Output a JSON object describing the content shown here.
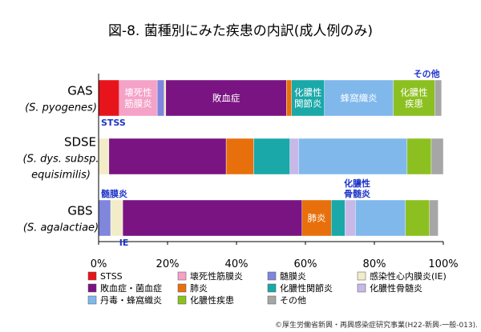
{
  "chart_data": {
    "type": "bar",
    "orientation": "horizontal",
    "stacked": true,
    "percent": true,
    "title": "図-8. 菌種別にみた疾患の内訳(成人例のみ)",
    "xlim": [
      0,
      100
    ],
    "x_ticks": [
      "0%",
      "20%",
      "40%",
      "60%",
      "80%",
      "100%"
    ],
    "grid": false,
    "legend_position": "bottom",
    "categories": [
      {
        "name": "GAS",
        "subname": [
          "(S. pyogenes)"
        ]
      },
      {
        "name": "SDSE",
        "subname": [
          "(S. dys. subsp.",
          "equisimilis)"
        ]
      },
      {
        "name": "GBS",
        "subname": [
          "(S. agalactiae)"
        ]
      }
    ],
    "series": [
      {
        "name": "STSS",
        "color": "#e8141c",
        "values": [
          6,
          0,
          0
        ],
        "segment_labels": [
          "",
          "",
          ""
        ]
      },
      {
        "name": "壊死性筋膜炎",
        "color": "#f4a2c8",
        "values": [
          11,
          0,
          0
        ],
        "segment_labels": [
          "壊死性\n筋膜炎",
          "",
          ""
        ]
      },
      {
        "name": "髄膜炎",
        "color": "#7f86dc",
        "values": [
          2,
          0,
          3.5
        ],
        "segment_labels": [
          "",
          "",
          ""
        ]
      },
      {
        "name": "感染性心内膜炎(IE)",
        "color": "#f2ecc8",
        "values": [
          0.5,
          3,
          3.5
        ],
        "segment_labels": [
          "",
          "",
          ""
        ]
      },
      {
        "name": "敗血症・菌血症",
        "color": "#7a1482",
        "values": [
          35,
          34,
          52
        ],
        "segment_labels": [
          "敗血症",
          "",
          ""
        ]
      },
      {
        "name": "肺炎",
        "color": "#e8700c",
        "values": [
          1.5,
          8,
          8.5
        ],
        "segment_labels": [
          "",
          "",
          "肺炎"
        ]
      },
      {
        "name": "化膿性関節炎",
        "color": "#1aa8a8",
        "values": [
          9.5,
          10.5,
          4
        ],
        "segment_labels": [
          "化膿性\n関節炎",
          "",
          ""
        ]
      },
      {
        "name": "化膿性骨髄炎",
        "color": "#c8b8e8",
        "values": [
          0,
          2.5,
          3
        ],
        "segment_labels": [
          "",
          "",
          ""
        ]
      },
      {
        "name": "丹毒・蜂窩織炎",
        "color": "#80b8ec",
        "values": [
          20,
          31.5,
          14.5
        ],
        "segment_labels": [
          "蜂窩織炎",
          "",
          ""
        ]
      },
      {
        "name": "化膿性疾患",
        "color": "#8cc020",
        "values": [
          12,
          7,
          7
        ],
        "segment_labels": [
          "化膿性\n疾患",
          "",
          ""
        ]
      },
      {
        "name": "その他",
        "color": "#a6a6a6",
        "values": [
          2,
          3.5,
          2.5
        ],
        "segment_labels": [
          "",
          "",
          ""
        ]
      }
    ],
    "annotations": [
      {
        "text": "その他",
        "category": 0,
        "at": 99,
        "position": "above"
      },
      {
        "text": "STSS",
        "category": 0,
        "at": 0,
        "position": "below"
      },
      {
        "text": "化膿性\n骨髄炎",
        "category": 2,
        "at": 75,
        "position": "above"
      },
      {
        "text": "髄膜炎",
        "category": 2,
        "at": 0,
        "position": "above"
      },
      {
        "text": "IE",
        "category": 2,
        "at": 6,
        "position": "below"
      }
    ]
  },
  "credit": "©厚生労働省新興・再興感染症研究事業(H22-新興-一般-013)."
}
